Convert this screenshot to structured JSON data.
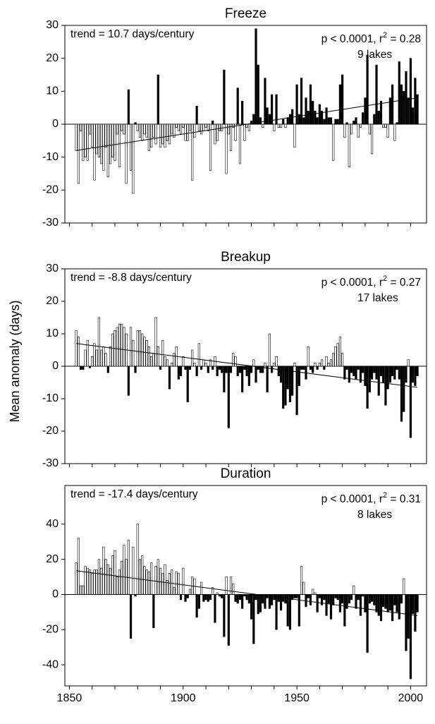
{
  "y_label": "Mean anomaly (days)",
  "chart_data": [
    {
      "type": "bar",
      "title": "Freeze",
      "trend_text": "trend = 10.7 days/century",
      "stats": {
        "text": "p < 0.0001, r",
        "sup": "2",
        "rest": " = 0.28"
      },
      "lakes": "9 lakes",
      "colors": {
        "positive": "#000000",
        "negative": "#ffffff"
      },
      "xlim": [
        1848,
        2007
      ],
      "ylim": [
        -30,
        30
      ],
      "yticks": [
        -30,
        -20,
        -10,
        0,
        10,
        20,
        30
      ],
      "x_minor_ticks": [
        1850,
        1860,
        1870,
        1880,
        1890,
        1900,
        1910,
        1920,
        1930,
        1940,
        1950,
        1960,
        1970,
        1980,
        1990,
        2000
      ],
      "x": [
        1853,
        1854,
        1855,
        1856,
        1857,
        1858,
        1859,
        1860,
        1861,
        1862,
        1863,
        1864,
        1865,
        1866,
        1867,
        1868,
        1869,
        1870,
        1871,
        1872,
        1873,
        1874,
        1875,
        1876,
        1877,
        1878,
        1879,
        1880,
        1881,
        1882,
        1883,
        1884,
        1885,
        1886,
        1887,
        1888,
        1889,
        1890,
        1891,
        1892,
        1893,
        1894,
        1895,
        1896,
        1897,
        1898,
        1899,
        1900,
        1901,
        1902,
        1903,
        1904,
        1905,
        1906,
        1907,
        1908,
        1909,
        1910,
        1911,
        1912,
        1913,
        1914,
        1915,
        1916,
        1917,
        1918,
        1919,
        1920,
        1921,
        1922,
        1923,
        1924,
        1925,
        1926,
        1927,
        1928,
        1929,
        1930,
        1931,
        1932,
        1933,
        1934,
        1935,
        1936,
        1937,
        1938,
        1939,
        1940,
        1941,
        1942,
        1943,
        1944,
        1945,
        1946,
        1947,
        1948,
        1949,
        1950,
        1951,
        1952,
        1953,
        1954,
        1955,
        1956,
        1957,
        1958,
        1959,
        1960,
        1961,
        1962,
        1963,
        1964,
        1965,
        1966,
        1967,
        1968,
        1969,
        1970,
        1971,
        1972,
        1973,
        1974,
        1975,
        1976,
        1977,
        1978,
        1979,
        1980,
        1981,
        1982,
        1983,
        1984,
        1985,
        1986,
        1987,
        1988,
        1989,
        1990,
        1991,
        1992,
        1993,
        1994,
        1995,
        1996,
        1997,
        1998,
        1999,
        2000,
        2001,
        2002,
        2003
      ],
      "values": [
        -8,
        -18,
        -2,
        -11,
        -10,
        -11,
        -3,
        -7,
        -17,
        -9,
        -10,
        -12,
        -14,
        -7,
        -16,
        -12,
        -10,
        -11,
        -3,
        -13,
        -2,
        -3,
        -18,
        10.5,
        -14,
        -21,
        0.5,
        -2,
        -4,
        -5,
        -3,
        -4,
        -8,
        -7,
        -4,
        -6,
        15,
        -7,
        -6,
        -7,
        -5,
        -6,
        -3,
        -4,
        -1,
        -2,
        -3,
        -1,
        -5,
        -5,
        -2,
        -17,
        -4,
        5.5,
        -2,
        -3,
        -2,
        -1,
        -2,
        -14,
        1,
        -6,
        -5,
        -2,
        -2,
        16.5,
        -15,
        -3,
        -8,
        -1,
        -5,
        11,
        -12,
        7,
        -5,
        -1,
        -2,
        1,
        3,
        29,
        18,
        2,
        -1,
        14,
        5,
        3,
        9,
        -2,
        9,
        -1,
        -1,
        1.5,
        -1,
        2,
        3,
        4.5,
        -7,
        12,
        3,
        14,
        2,
        8,
        4,
        12,
        7,
        4,
        2,
        6,
        4,
        1.5,
        5,
        2,
        2,
        -11,
        1.5,
        1.5,
        12,
        15,
        -4,
        0.5,
        -13,
        -3,
        1,
        2,
        -4,
        -1,
        3.5,
        8,
        21,
        -3,
        -9,
        3,
        18,
        4,
        7,
        -1,
        -1,
        -4,
        8,
        12,
        -5,
        0.5,
        19,
        12,
        10,
        16,
        8,
        20,
        5,
        14,
        9
      ],
      "trend": {
        "x": [
          1853,
          2003
        ],
        "y": [
          -8,
          8
        ]
      }
    },
    {
      "type": "bar",
      "title": "Breakup",
      "trend_text": "trend = -8.8 days/century",
      "stats": {
        "text": "p < 0.0001, r",
        "sup": "2",
        "rest": " = 0.27"
      },
      "lakes": "17 lakes",
      "colors": {
        "positive": "#ffffff",
        "negative": "#000000"
      },
      "xlim": [
        1848,
        2007
      ],
      "ylim": [
        -30,
        30
      ],
      "yticks": [
        -30,
        -20,
        -10,
        0,
        10,
        20,
        30
      ],
      "x_minor_ticks": [
        1850,
        1860,
        1870,
        1880,
        1890,
        1900,
        1910,
        1920,
        1930,
        1940,
        1950,
        1960,
        1970,
        1980,
        1990,
        2000
      ],
      "x": [
        1853,
        1854,
        1855,
        1856,
        1857,
        1858,
        1859,
        1860,
        1861,
        1862,
        1863,
        1864,
        1865,
        1866,
        1867,
        1868,
        1869,
        1870,
        1871,
        1872,
        1873,
        1874,
        1875,
        1876,
        1877,
        1878,
        1879,
        1880,
        1881,
        1882,
        1883,
        1884,
        1885,
        1886,
        1887,
        1888,
        1889,
        1890,
        1891,
        1892,
        1893,
        1894,
        1895,
        1896,
        1897,
        1898,
        1899,
        1900,
        1901,
        1902,
        1903,
        1904,
        1905,
        1906,
        1907,
        1908,
        1909,
        1910,
        1911,
        1912,
        1913,
        1914,
        1915,
        1916,
        1917,
        1918,
        1919,
        1920,
        1921,
        1922,
        1923,
        1924,
        1925,
        1926,
        1927,
        1928,
        1929,
        1930,
        1931,
        1932,
        1933,
        1934,
        1935,
        1936,
        1937,
        1938,
        1939,
        1940,
        1941,
        1942,
        1943,
        1944,
        1945,
        1946,
        1947,
        1948,
        1949,
        1950,
        1951,
        1952,
        1953,
        1954,
        1955,
        1956,
        1957,
        1958,
        1959,
        1960,
        1961,
        1962,
        1963,
        1964,
        1965,
        1966,
        1967,
        1968,
        1969,
        1970,
        1971,
        1972,
        1973,
        1974,
        1975,
        1976,
        1977,
        1978,
        1979,
        1980,
        1981,
        1982,
        1983,
        1984,
        1985,
        1986,
        1987,
        1988,
        1989,
        1990,
        1991,
        1992,
        1993,
        1994,
        1995,
        1996,
        1997,
        1998,
        1999,
        2000,
        2001,
        2002,
        2003
      ],
      "values": [
        11,
        9,
        -1,
        -1,
        5,
        8,
        -0.5,
        3,
        7,
        5,
        15,
        5,
        6,
        4,
        -2,
        6,
        10,
        11,
        12,
        13,
        13,
        12,
        10,
        -9,
        12,
        8,
        -2,
        11,
        11,
        10,
        9,
        8,
        6,
        3,
        4,
        15,
        6,
        -1,
        8,
        3,
        2,
        -7,
        1,
        4,
        6,
        -4,
        -3,
        3,
        -1,
        -11,
        -1,
        5,
        1,
        -3,
        7,
        -1,
        2,
        1,
        -2,
        2,
        -1,
        3,
        -3,
        -1,
        -2,
        -8,
        -2,
        -19,
        -2,
        4,
        3,
        -3,
        -2,
        -8,
        -1,
        -3,
        -6,
        -2,
        2,
        -5,
        -1,
        -2,
        -2,
        1,
        -8,
        10,
        -2,
        1,
        3,
        -3,
        -5,
        -13,
        -12,
        -7,
        -11,
        -9,
        1,
        -15,
        -6,
        -1,
        -1,
        -4,
        6,
        -1,
        -2,
        1,
        -1,
        1,
        2,
        -1,
        3,
        1,
        2,
        4,
        6,
        7,
        9,
        4,
        -4,
        -1,
        -5,
        -2,
        -3,
        -4,
        -1,
        -5,
        -2,
        -6,
        -13,
        -8,
        -4,
        -2,
        -4,
        -9,
        -3,
        -5,
        -12,
        -7,
        -5,
        -3,
        -4,
        -1,
        -4,
        -17,
        -14,
        -5,
        2,
        -22,
        -5,
        -6,
        -3
      ],
      "trend": {
        "x": [
          1853,
          2003
        ],
        "y": [
          7,
          -6.5
        ]
      }
    },
    {
      "type": "bar",
      "title": "Duration",
      "trend_text": "trend = -17.4 days/century",
      "stats": {
        "text": "p < 0.0001, r",
        "sup": "2",
        "rest": " = 0.31"
      },
      "lakes": "8 lakes",
      "colors": {
        "positive": "#ffffff",
        "negative": "#000000"
      },
      "xlim": [
        1848,
        2007
      ],
      "ylim": [
        -52,
        62
      ],
      "yticks": [
        -40,
        -20,
        0,
        20,
        40
      ],
      "x_minor_ticks": [
        1850,
        1860,
        1870,
        1880,
        1890,
        1900,
        1910,
        1920,
        1930,
        1940,
        1950,
        1960,
        1970,
        1980,
        1990,
        2000
      ],
      "xticks": [
        1850,
        1900,
        1950,
        2000
      ],
      "x": [
        1853,
        1854,
        1855,
        1856,
        1857,
        1858,
        1859,
        1860,
        1861,
        1862,
        1863,
        1864,
        1865,
        1866,
        1867,
        1868,
        1869,
        1870,
        1871,
        1872,
        1873,
        1874,
        1875,
        1876,
        1877,
        1878,
        1879,
        1880,
        1881,
        1882,
        1883,
        1884,
        1885,
        1886,
        1887,
        1888,
        1889,
        1890,
        1891,
        1892,
        1893,
        1894,
        1895,
        1896,
        1897,
        1898,
        1899,
        1900,
        1901,
        1902,
        1903,
        1904,
        1905,
        1906,
        1907,
        1908,
        1909,
        1910,
        1911,
        1912,
        1913,
        1914,
        1915,
        1916,
        1917,
        1918,
        1919,
        1920,
        1921,
        1922,
        1923,
        1924,
        1925,
        1926,
        1927,
        1928,
        1929,
        1930,
        1931,
        1932,
        1933,
        1934,
        1935,
        1936,
        1937,
        1938,
        1939,
        1940,
        1941,
        1942,
        1943,
        1944,
        1945,
        1946,
        1947,
        1948,
        1949,
        1950,
        1951,
        1952,
        1953,
        1954,
        1955,
        1956,
        1957,
        1958,
        1959,
        1960,
        1961,
        1962,
        1963,
        1964,
        1965,
        1966,
        1967,
        1968,
        1969,
        1970,
        1971,
        1972,
        1973,
        1974,
        1975,
        1976,
        1977,
        1978,
        1979,
        1980,
        1981,
        1982,
        1983,
        1984,
        1985,
        1986,
        1987,
        1988,
        1989,
        1990,
        1991,
        1992,
        1993,
        1994,
        1995,
        1996,
        1997,
        1998,
        1999,
        2000,
        2001,
        2002,
        2003
      ],
      "values": [
        18,
        32,
        5,
        5,
        16,
        15,
        14,
        12,
        14,
        14,
        20,
        15,
        27,
        20,
        17,
        15,
        22,
        25,
        10,
        14,
        19,
        28,
        20,
        31,
        -25,
        27,
        -1,
        40,
        20,
        22,
        16,
        14,
        13,
        18,
        -19,
        16,
        20,
        15,
        12,
        17,
        8,
        12,
        14,
        4,
        13,
        12,
        -3,
        15,
        -4,
        -2,
        3,
        10,
        9,
        -13,
        -8,
        7,
        -4,
        -3,
        -4,
        -3,
        4,
        -16,
        1,
        -1,
        -2,
        -24,
        10,
        -29,
        10,
        6,
        -4,
        -5,
        -3,
        -8,
        -1,
        -3,
        -5,
        -14,
        -28,
        -3,
        -11,
        -10,
        -5,
        -8,
        -2,
        -8,
        -6,
        -3,
        -20,
        -4,
        -9,
        -4,
        -5,
        -18,
        -20,
        -3,
        -2,
        -2,
        -18,
        16,
        7,
        -7,
        -2,
        -6,
        3,
        1,
        -10,
        -2,
        -6,
        -3,
        -12,
        -5,
        -14,
        -6,
        -2,
        -3,
        -10,
        -5,
        -18,
        -8,
        -5,
        -3,
        5,
        -8,
        -3,
        -12,
        -1,
        -10,
        -33,
        -5,
        -4,
        -6,
        -10,
        -12,
        -15,
        -7,
        -8,
        -10,
        -9,
        -15,
        -6,
        -10,
        -14,
        -5,
        9,
        -32,
        -25,
        -48,
        -11,
        -21,
        -10
      ],
      "trend": {
        "x": [
          1853,
          2003
        ],
        "y": [
          13.5,
          -12
        ]
      }
    }
  ]
}
